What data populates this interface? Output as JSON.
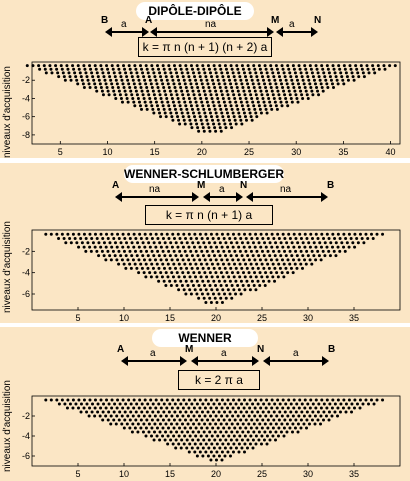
{
  "chart_data": [
    {
      "type": "scatter",
      "title": "DIPÔLE-DIPÔLE",
      "formula": "k = π n (n + 1) (n + 2) a",
      "electrodes": {
        "labels": [
          "B",
          "A",
          "M",
          "N"
        ],
        "spacing_labels": [
          "a",
          "na",
          "a"
        ]
      },
      "ylabel": "niveaux d'acquisition",
      "xticks": [
        5,
        10,
        15,
        20,
        25,
        30,
        35,
        40
      ],
      "yticks": [
        -2,
        -4,
        -6,
        -8
      ],
      "xlim": [
        2,
        41
      ],
      "ylim": [
        -9,
        0
      ],
      "x_range": [
        1.5,
        40.5
      ],
      "y_bottom": -7.9
    },
    {
      "type": "scatter",
      "title": "WENNER-SCHLUMBERGER",
      "formula": "k = π n (n + 1) a",
      "electrodes": {
        "labels": [
          "A",
          "M",
          "N",
          "B"
        ],
        "spacing_labels": [
          "na",
          "a",
          "na"
        ]
      },
      "ylabel": "niveaux d'acquisition",
      "xticks": [
        5,
        10,
        15,
        20,
        25,
        30,
        35
      ],
      "yticks": [
        -2,
        -4,
        -6
      ],
      "xlim": [
        0,
        40
      ],
      "ylim": [
        -7.5,
        0
      ],
      "x_range": [
        1.5,
        38.5
      ],
      "y_bottom": -7.0
    },
    {
      "type": "scatter",
      "title": "WENNER",
      "formula": "k = 2 π a",
      "electrodes": {
        "labels": [
          "A",
          "M",
          "N",
          "B"
        ],
        "spacing_labels": [
          "a",
          "a",
          "a"
        ]
      },
      "ylabel": "niveaux d'acquisition",
      "xticks": [
        5,
        10,
        15,
        20,
        25,
        30,
        35
      ],
      "yticks": [
        -2,
        -4,
        -6
      ],
      "xlim": [
        0,
        40
      ],
      "ylim": [
        -7,
        0
      ],
      "x_range": [
        1.5,
        38.5
      ],
      "y_bottom": -6.5
    }
  ]
}
